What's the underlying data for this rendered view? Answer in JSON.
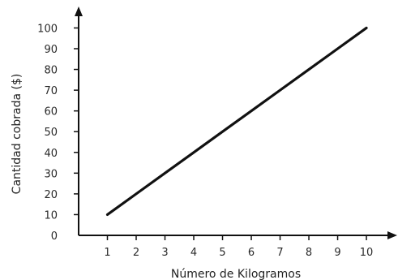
{
  "chart_data": {
    "type": "line",
    "xlabel": "Número de Kilogramos",
    "ylabel": "Cantidad cobrada ($)",
    "x": [
      1,
      2,
      3,
      4,
      5,
      6,
      7,
      8,
      9,
      10
    ],
    "x_ticks": [
      "1",
      "2",
      "3",
      "4",
      "5",
      "6",
      "7",
      "8",
      "9",
      "10"
    ],
    "y_ticks": [
      "0",
      "10",
      "20",
      "30",
      "40",
      "50",
      "60",
      "70",
      "80",
      "90",
      "100"
    ],
    "xlim": [
      0,
      10.9
    ],
    "ylim": [
      0,
      108
    ],
    "grid": false,
    "series": [
      {
        "values": [
          10,
          20,
          30,
          40,
          50,
          60,
          70,
          80,
          90,
          100
        ],
        "color": "#111111"
      }
    ]
  }
}
